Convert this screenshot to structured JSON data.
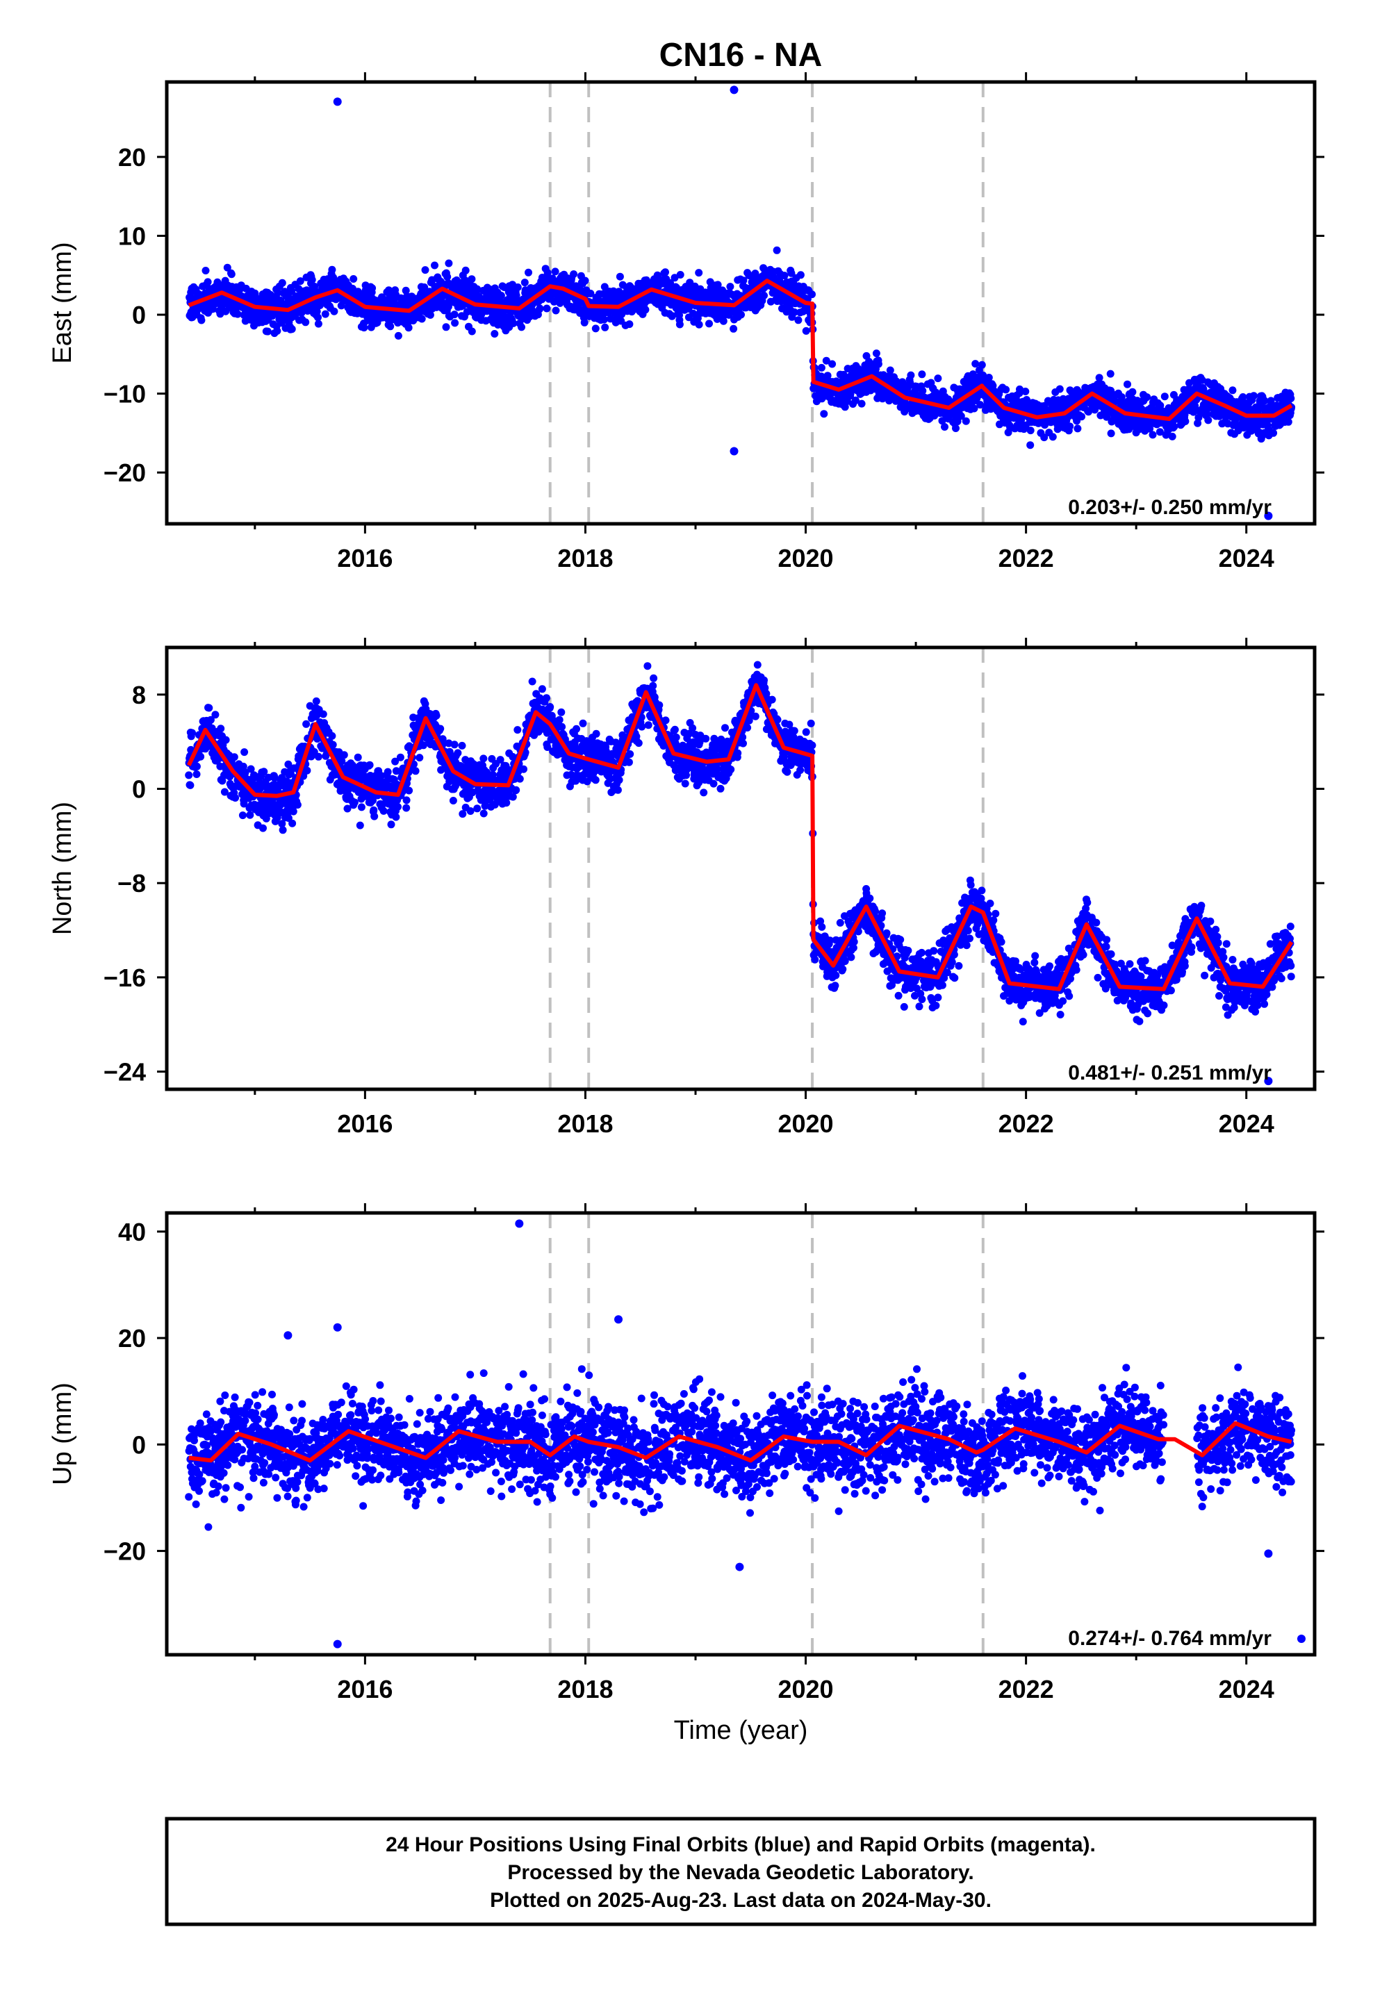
{
  "chart_data": {
    "type": "scatter",
    "title": "CN16 - NA",
    "xlabel": "Time (year)",
    "xlim": [
      2014.2,
      2024.62
    ],
    "xticks": [
      2016,
      2018,
      2020,
      2022,
      2024
    ],
    "xtick_labels": [
      "2016",
      "2018",
      "2020",
      "2022",
      "2024"
    ],
    "minor_xticks": [
      2015,
      2017,
      2019,
      2021,
      2023
    ],
    "data_span": [
      2014.4,
      2024.41
    ],
    "equipment_change_lines": [
      2017.68,
      2018.03,
      2020.06,
      2021.61
    ],
    "series_colors": {
      "final_orbits": "#0000ff",
      "rapid_orbits": "#ff00ff",
      "model_fit": "#ff0000",
      "change_lines": "#c0c0c0"
    },
    "panels": [
      {
        "id": "east",
        "ylabel": "East (mm)",
        "ylim": [
          -26.5,
          29.5
        ],
        "yticks": [
          20,
          10,
          0,
          -10,
          -20
        ],
        "ytick_labels": [
          "20",
          "10",
          "0",
          "−10",
          "−20"
        ],
        "rate": "0.203+/- 0.250 mm/yr",
        "seasonal_amp": 1.6,
        "noise_sd": 1.2,
        "fit_points": [
          [
            2014.4,
            1.2
          ],
          [
            2014.7,
            2.8
          ],
          [
            2015.0,
            1.0
          ],
          [
            2015.3,
            0.6
          ],
          [
            2015.55,
            2.2
          ],
          [
            2015.75,
            3.1
          ],
          [
            2016.0,
            1.0
          ],
          [
            2016.4,
            0.5
          ],
          [
            2016.7,
            3.3
          ],
          [
            2017.0,
            1.3
          ],
          [
            2017.4,
            0.8
          ],
          [
            2017.68,
            3.6
          ],
          [
            2017.8,
            3.3
          ],
          [
            2018.0,
            2.0
          ],
          [
            2018.03,
            1.1
          ],
          [
            2018.3,
            1.0
          ],
          [
            2018.6,
            3.2
          ],
          [
            2019.0,
            1.5
          ],
          [
            2019.35,
            1.2
          ],
          [
            2019.65,
            4.3
          ],
          [
            2020.0,
            1.5
          ],
          [
            2020.06,
            1.4
          ],
          [
            2020.07,
            -8.5
          ],
          [
            2020.3,
            -9.5
          ],
          [
            2020.6,
            -7.8
          ],
          [
            2020.9,
            -10.5
          ],
          [
            2021.3,
            -11.8
          ],
          [
            2021.6,
            -9.0
          ],
          [
            2021.61,
            -9.2
          ],
          [
            2021.8,
            -11.8
          ],
          [
            2022.1,
            -13.0
          ],
          [
            2022.35,
            -12.5
          ],
          [
            2022.6,
            -10.0
          ],
          [
            2022.9,
            -12.5
          ],
          [
            2023.3,
            -13.2
          ],
          [
            2023.55,
            -10.0
          ],
          [
            2023.8,
            -11.5
          ],
          [
            2024.0,
            -12.8
          ],
          [
            2024.25,
            -12.8
          ],
          [
            2024.41,
            -11.5
          ]
        ],
        "outliers": [
          [
            2015.75,
            27.0
          ],
          [
            2019.35,
            28.5
          ],
          [
            2019.35,
            -17.3
          ],
          [
            2024.2,
            -25.5
          ]
        ]
      },
      {
        "id": "north",
        "ylabel": "North (mm)",
        "ylim": [
          -25.5,
          12.0
        ],
        "yticks": [
          8,
          0,
          -8,
          -16,
          -24
        ],
        "ytick_labels": [
          "8",
          "0",
          "−8",
          "−16",
          "−24"
        ],
        "rate": "0.481+/- 0.251 mm/yr",
        "seasonal_amp": 3.5,
        "noise_sd": 1.0,
        "fit_points": [
          [
            2014.4,
            2.0
          ],
          [
            2014.55,
            5.0
          ],
          [
            2014.8,
            1.5
          ],
          [
            2015.0,
            -0.5
          ],
          [
            2015.2,
            -0.6
          ],
          [
            2015.35,
            -0.3
          ],
          [
            2015.55,
            5.5
          ],
          [
            2015.8,
            1.0
          ],
          [
            2016.1,
            -0.3
          ],
          [
            2016.3,
            -0.5
          ],
          [
            2016.55,
            6.0
          ],
          [
            2016.8,
            1.5
          ],
          [
            2017.0,
            0.4
          ],
          [
            2017.3,
            0.3
          ],
          [
            2017.55,
            6.5
          ],
          [
            2017.68,
            5.5
          ],
          [
            2017.85,
            3.0
          ],
          [
            2018.03,
            2.5
          ],
          [
            2018.3,
            1.8
          ],
          [
            2018.55,
            8.2
          ],
          [
            2018.8,
            3.0
          ],
          [
            2019.1,
            2.3
          ],
          [
            2019.3,
            2.5
          ],
          [
            2019.55,
            8.8
          ],
          [
            2019.8,
            3.5
          ],
          [
            2020.06,
            2.8
          ],
          [
            2020.07,
            -12.8
          ],
          [
            2020.25,
            -15.0
          ],
          [
            2020.55,
            -10.0
          ],
          [
            2020.85,
            -15.5
          ],
          [
            2021.2,
            -16.0
          ],
          [
            2021.5,
            -10.0
          ],
          [
            2021.61,
            -10.5
          ],
          [
            2021.85,
            -16.5
          ],
          [
            2022.3,
            -17.0
          ],
          [
            2022.55,
            -11.5
          ],
          [
            2022.85,
            -16.8
          ],
          [
            2023.25,
            -17.0
          ],
          [
            2023.55,
            -11.0
          ],
          [
            2023.85,
            -16.5
          ],
          [
            2024.15,
            -16.8
          ],
          [
            2024.41,
            -13.0
          ]
        ],
        "outliers": [
          [
            2024.2,
            -24.8
          ]
        ]
      },
      {
        "id": "up",
        "ylabel": "Up (mm)",
        "ylim": [
          -39.5,
          43.5
        ],
        "yticks": [
          40,
          20,
          0,
          -20
        ],
        "ytick_labels": [
          "40",
          "20",
          "0",
          "−20"
        ],
        "rate": "0.274+/- 0.764 mm/yr",
        "seasonal_amp": 2.5,
        "noise_sd": 4.0,
        "fit_points": [
          [
            2014.4,
            -2.5
          ],
          [
            2014.6,
            -3.0
          ],
          [
            2014.85,
            2.0
          ],
          [
            2015.15,
            0.0
          ],
          [
            2015.5,
            -3.0
          ],
          [
            2015.85,
            2.5
          ],
          [
            2016.2,
            0.0
          ],
          [
            2016.55,
            -2.5
          ],
          [
            2016.85,
            2.5
          ],
          [
            2017.2,
            0.5
          ],
          [
            2017.5,
            0.5
          ],
          [
            2017.68,
            -2.0
          ],
          [
            2017.9,
            1.5
          ],
          [
            2018.03,
            0.5
          ],
          [
            2018.3,
            -0.5
          ],
          [
            2018.55,
            -2.5
          ],
          [
            2018.85,
            1.5
          ],
          [
            2019.2,
            -0.5
          ],
          [
            2019.5,
            -3.0
          ],
          [
            2019.8,
            1.5
          ],
          [
            2020.06,
            0.5
          ],
          [
            2020.3,
            0.5
          ],
          [
            2020.55,
            -2.0
          ],
          [
            2020.85,
            3.5
          ],
          [
            2021.3,
            1.0
          ],
          [
            2021.55,
            -1.5
          ],
          [
            2021.61,
            -1.0
          ],
          [
            2021.9,
            3.0
          ],
          [
            2022.3,
            0.5
          ],
          [
            2022.55,
            -1.5
          ],
          [
            2022.85,
            3.5
          ],
          [
            2023.2,
            1.0
          ],
          [
            2023.35,
            1.0
          ],
          [
            2023.6,
            -2.0
          ],
          [
            2023.9,
            4.0
          ],
          [
            2024.2,
            1.5
          ],
          [
            2024.41,
            0.5
          ]
        ],
        "outliers": [
          [
            2017.4,
            41.5
          ],
          [
            2015.75,
            -37.5
          ],
          [
            2024.5,
            -36.5
          ],
          [
            2018.3,
            23.5
          ],
          [
            2019.4,
            -23.0
          ],
          [
            2024.2,
            -20.5
          ],
          [
            2015.75,
            22.0
          ],
          [
            2015.3,
            20.5
          ]
        ]
      }
    ]
  },
  "footer": {
    "line1": "24 Hour Positions Using Final Orbits (blue) and Rapid Orbits (magenta).",
    "line2": "Processed by the Nevada Geodetic Laboratory.",
    "line3": "Plotted on 2025-Aug-23. Last data on 2024-May-30."
  }
}
